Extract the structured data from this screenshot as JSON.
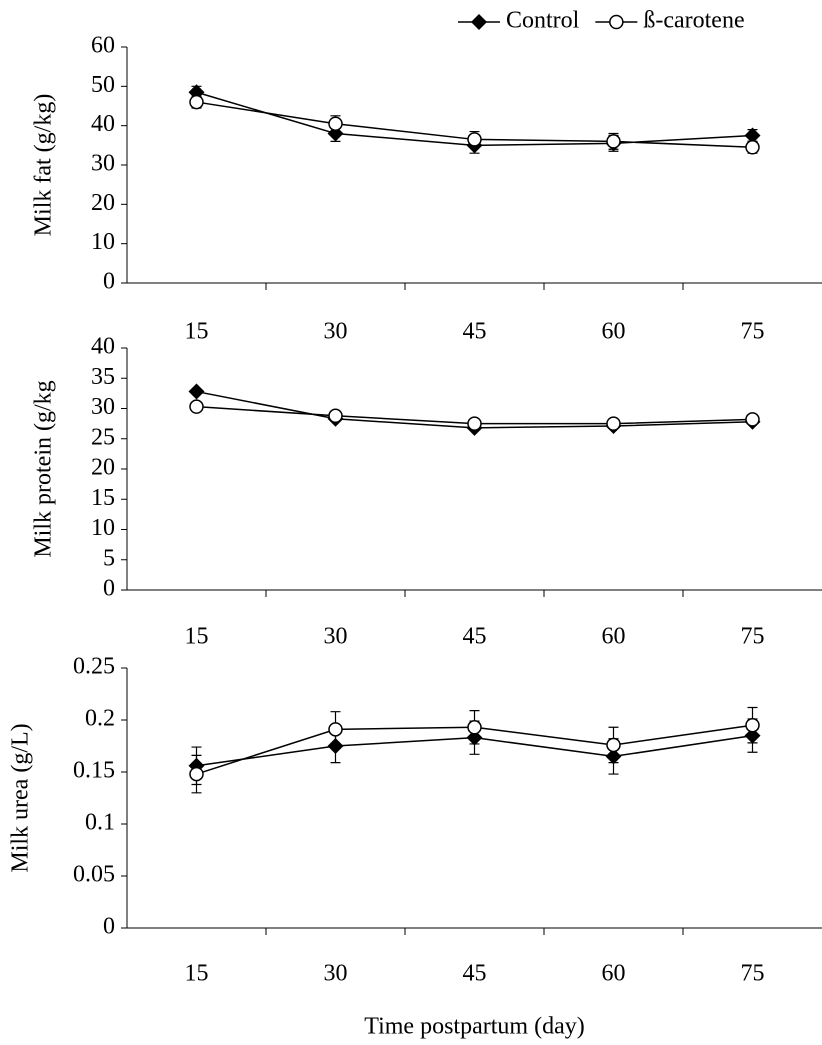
{
  "chart_data": [
    {
      "type": "line",
      "ylabel": "Milk fat (g/kg)",
      "categories": [
        "15",
        "30",
        "45",
        "60",
        "75"
      ],
      "ylim": [
        0,
        60
      ],
      "yticks": [
        0,
        10,
        20,
        30,
        40,
        50,
        60
      ],
      "legend": "top-right",
      "series": [
        {
          "name": "Control",
          "color": "#000000",
          "marker": "diamond",
          "values": [
            48.5,
            38,
            35,
            35.5,
            37.5
          ],
          "errors": [
            1.5,
            2,
            2,
            2,
            1.5
          ]
        },
        {
          "name": "ß-carotene",
          "color": "#000000",
          "marker": "circle",
          "values": [
            46,
            40.5,
            36.5,
            36,
            34.5
          ],
          "errors": [
            1.5,
            2,
            2,
            2,
            1.5
          ]
        }
      ]
    },
    {
      "type": "line",
      "ylabel": "Milk protein (g/kg",
      "categories": [
        "15",
        "30",
        "45",
        "60",
        "75"
      ],
      "ylim": [
        0,
        40
      ],
      "yticks": [
        0,
        5,
        10,
        15,
        20,
        25,
        30,
        35,
        40
      ],
      "series": [
        {
          "color": "#000000",
          "marker": "diamond",
          "values": [
            32.8,
            28.3,
            26.8,
            27.1,
            27.8
          ]
        },
        {
          "color": "#000000",
          "marker": "circle",
          "values": [
            30.3,
            28.8,
            27.5,
            27.5,
            28.2
          ]
        }
      ]
    },
    {
      "type": "line",
      "ylabel": "Milk urea (g/L)",
      "xlabel": "Time postpartum (day)",
      "categories": [
        "15",
        "30",
        "45",
        "60",
        "75"
      ],
      "ylim": [
        0,
        0.25
      ],
      "yticks": [
        0,
        0.05,
        0.1,
        0.15,
        0.2,
        0.25
      ],
      "series": [
        {
          "color": "#000000",
          "marker": "diamond",
          "values": [
            0.156,
            0.175,
            0.183,
            0.165,
            0.185
          ],
          "errors": [
            0.018,
            0.016,
            0.016,
            0.017,
            0.016
          ]
        },
        {
          "color": "#000000",
          "marker": "circle",
          "values": [
            0.148,
            0.191,
            0.193,
            0.176,
            0.195
          ],
          "errors": [
            0.018,
            0.017,
            0.016,
            0.017,
            0.017
          ]
        }
      ]
    }
  ]
}
